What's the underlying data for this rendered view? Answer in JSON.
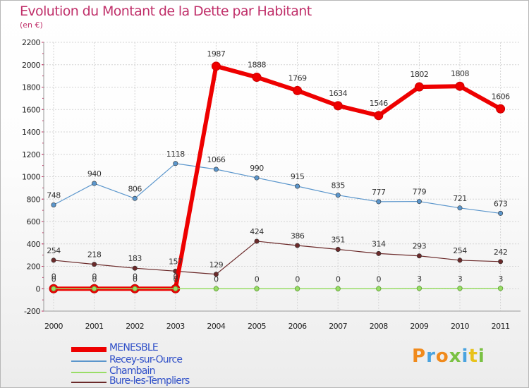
{
  "header": {
    "title": "Evolution du Montant de la Dette par Habitant",
    "subtitle": "(en €)"
  },
  "chart_data": {
    "type": "line",
    "categories": [
      "2000",
      "2001",
      "2002",
      "2003",
      "2004",
      "2005",
      "2006",
      "2007",
      "2008",
      "2009",
      "2010",
      "2011"
    ],
    "ylim": [
      -200,
      2200
    ],
    "yticks": [
      -200,
      0,
      200,
      400,
      600,
      800,
      1000,
      1200,
      1400,
      1600,
      1800,
      2000,
      2200
    ],
    "grid": true,
    "legend_position": "bottom-left",
    "series": [
      {
        "name": "MENESBLE",
        "color": "#ee0000",
        "values": [
          0,
          0,
          0,
          0,
          1987,
          1888,
          1769,
          1634,
          1546,
          1802,
          1808,
          1606
        ],
        "labels": [
          "0",
          "0",
          "0",
          "0",
          "1987",
          "1888",
          "1769",
          "1634",
          "1546",
          "1802",
          "1808",
          "1606"
        ]
      },
      {
        "name": "Recey-sur-Ource",
        "color": "#5b96cc",
        "values": [
          748,
          940,
          806,
          1118,
          1066,
          990,
          915,
          835,
          777,
          779,
          721,
          673
        ],
        "labels": [
          "748",
          "940",
          "806",
          "1118",
          "1066",
          "990",
          "915",
          "835",
          "777",
          "779",
          "721",
          "673"
        ]
      },
      {
        "name": "Chambain",
        "color": "#99dd66",
        "values": [
          0,
          0,
          0,
          0,
          0,
          0,
          0,
          0,
          0,
          3,
          3,
          3
        ],
        "labels": [
          "0",
          "0",
          "0",
          "0",
          "0",
          "0",
          "0",
          "0",
          "0",
          "3",
          "3",
          "3"
        ]
      },
      {
        "name": "Bure-les-Templiers",
        "color": "#6b2a2a",
        "values": [
          254,
          218,
          183,
          157,
          129,
          424,
          386,
          351,
          314,
          293,
          254,
          242
        ],
        "labels": [
          "254",
          "218",
          "183",
          "157",
          "129",
          "424",
          "386",
          "351",
          "314",
          "293",
          "254",
          "242"
        ]
      }
    ]
  },
  "legend": {
    "items": [
      {
        "label": "MENESBLE",
        "color": "#ee0000"
      },
      {
        "label": "Recey-sur-Ource",
        "color": "#5b96cc"
      },
      {
        "label": "Chambain",
        "color": "#99dd66"
      },
      {
        "label": "Bure-les-Templiers",
        "color": "#6b2a2a"
      }
    ]
  },
  "logo": {
    "text": "Proxiti",
    "colors": [
      "#f08a1c",
      "#4aa3df",
      "#f08a1c",
      "#7ac143",
      "#4aa3df",
      "#e8c21a",
      "#7ac143"
    ]
  }
}
